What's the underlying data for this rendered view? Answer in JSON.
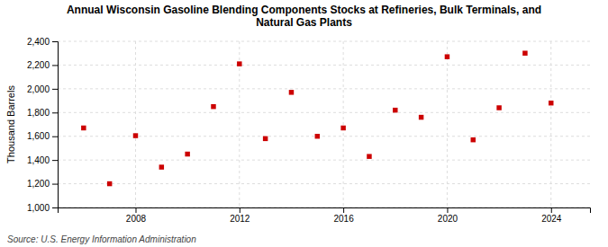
{
  "chart_data": {
    "type": "scatter",
    "title": "Annual Wisconsin Gasoline Blending Components Stocks at Refineries, Bulk Terminals, and\nNatural Gas Plants",
    "ylabel": "Thousand Barrels",
    "annotations": [
      "Source: U.S. Energy Information Administration"
    ],
    "x": [
      2006,
      2007,
      2008,
      2009,
      2010,
      2011,
      2012,
      2013,
      2014,
      2015,
      2016,
      2017,
      2018,
      2019,
      2020,
      2021,
      2022,
      2023,
      2024
    ],
    "values": [
      1670,
      1200,
      1605,
      1340,
      1450,
      1850,
      2210,
      1580,
      1970,
      1600,
      1670,
      1430,
      1820,
      1760,
      2270,
      1570,
      1840,
      2300,
      1880
    ],
    "color": "#cc0000",
    "marker": "square",
    "xlim": [
      2005,
      2025.5
    ],
    "xticks": [
      2008,
      2012,
      2016,
      2020,
      2024
    ],
    "ylim": [
      1000,
      2400
    ],
    "yticks": [
      {
        "value": 1000,
        "label": "1,000"
      },
      {
        "value": 1200,
        "label": "1,200"
      },
      {
        "value": 1400,
        "label": "1,400"
      },
      {
        "value": 1600,
        "label": "1,600"
      },
      {
        "value": 1800,
        "label": "1,800"
      },
      {
        "value": 2000,
        "label": "2,000"
      },
      {
        "value": 2200,
        "label": "2,200"
      },
      {
        "value": 2400,
        "label": "2,400"
      }
    ],
    "grid": true
  }
}
